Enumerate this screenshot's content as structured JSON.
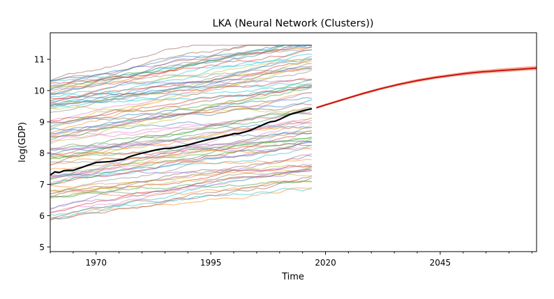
{
  "chart_data": {
    "type": "line",
    "title": "LKA (Neural Network (Clusters))",
    "xlabel": "Time",
    "ylabel": "log(GDP)",
    "xlim": [
      1960,
      2066
    ],
    "ylim": [
      4.85,
      11.85
    ],
    "x_ticks": [
      1970,
      1995,
      2020,
      2045
    ],
    "x_tick_labels": [
      "1970",
      "1995",
      "2020",
      "2045"
    ],
    "y_ticks": [
      5,
      6,
      7,
      8,
      9,
      10,
      11
    ],
    "y_tick_labels": [
      "5",
      "6",
      "7",
      "8",
      "9",
      "10",
      "11"
    ],
    "grid": false,
    "legend": "none",
    "series": [
      {
        "role": "history",
        "color": "#000000",
        "x": [
          1960,
          1961,
          1962,
          1963,
          1964,
          1965,
          1966,
          1967,
          1968,
          1969,
          1970,
          1971,
          1972,
          1973,
          1974,
          1975,
          1976,
          1977,
          1978,
          1979,
          1980,
          1981,
          1982,
          1983,
          1984,
          1985,
          1986,
          1987,
          1988,
          1989,
          1990,
          1991,
          1992,
          1993,
          1994,
          1995,
          1996,
          1997,
          1998,
          1999,
          2000,
          2001,
          2002,
          2003,
          2004,
          2005,
          2006,
          2007,
          2008,
          2009,
          2010,
          2011,
          2012,
          2013,
          2014,
          2015,
          2016,
          2017
        ],
        "values": [
          7.3,
          7.4,
          7.38,
          7.44,
          7.45,
          7.45,
          7.5,
          7.55,
          7.6,
          7.65,
          7.7,
          7.71,
          7.72,
          7.73,
          7.75,
          7.78,
          7.8,
          7.87,
          7.92,
          7.96,
          8.0,
          8.03,
          8.07,
          8.1,
          8.13,
          8.15,
          8.15,
          8.17,
          8.2,
          8.23,
          8.26,
          8.3,
          8.34,
          8.38,
          8.42,
          8.45,
          8.48,
          8.52,
          8.55,
          8.58,
          8.62,
          8.62,
          8.66,
          8.7,
          8.75,
          8.82,
          8.88,
          8.95,
          9.0,
          9.02,
          9.08,
          9.15,
          9.22,
          9.27,
          9.31,
          9.35,
          9.39,
          9.42
        ]
      },
      {
        "role": "forecast",
        "color": "#cc1111",
        "band_color": "#f4a58a",
        "x": [
          2018,
          2020,
          2022,
          2024,
          2026,
          2028,
          2030,
          2032,
          2034,
          2036,
          2038,
          2040,
          2042,
          2044,
          2046,
          2048,
          2050,
          2052,
          2054,
          2056,
          2058,
          2060,
          2062,
          2064,
          2066
        ],
        "values": [
          9.45,
          9.54,
          9.63,
          9.72,
          9.81,
          9.9,
          9.98,
          10.06,
          10.13,
          10.2,
          10.26,
          10.32,
          10.37,
          10.42,
          10.46,
          10.5,
          10.54,
          10.57,
          10.6,
          10.62,
          10.64,
          10.66,
          10.68,
          10.7,
          10.72
        ],
        "band_lower": [
          9.42,
          9.51,
          9.6,
          9.69,
          9.78,
          9.86,
          9.94,
          10.02,
          10.09,
          10.15,
          10.21,
          10.27,
          10.32,
          10.37,
          10.41,
          10.45,
          10.48,
          10.51,
          10.54,
          10.56,
          10.58,
          10.6,
          10.62,
          10.64,
          10.65
        ],
        "band_upper": [
          9.49,
          9.58,
          9.67,
          9.76,
          9.85,
          9.94,
          10.02,
          10.1,
          10.17,
          10.24,
          10.31,
          10.37,
          10.42,
          10.47,
          10.51,
          10.55,
          10.59,
          10.63,
          10.66,
          10.68,
          10.71,
          10.73,
          10.75,
          10.77,
          10.79
        ]
      }
    ],
    "background_panel": {
      "description_count": 90,
      "x_start": 1960,
      "x_end": 2017,
      "value_range": [
        5.3,
        11.5
      ],
      "colors": [
        "#1f77b4",
        "#ff7f0e",
        "#2ca02c",
        "#d62728",
        "#9467bd",
        "#8c564b",
        "#e377c2",
        "#7f7f7f",
        "#bcbd22",
        "#17becf"
      ],
      "opacity": 0.5
    }
  }
}
